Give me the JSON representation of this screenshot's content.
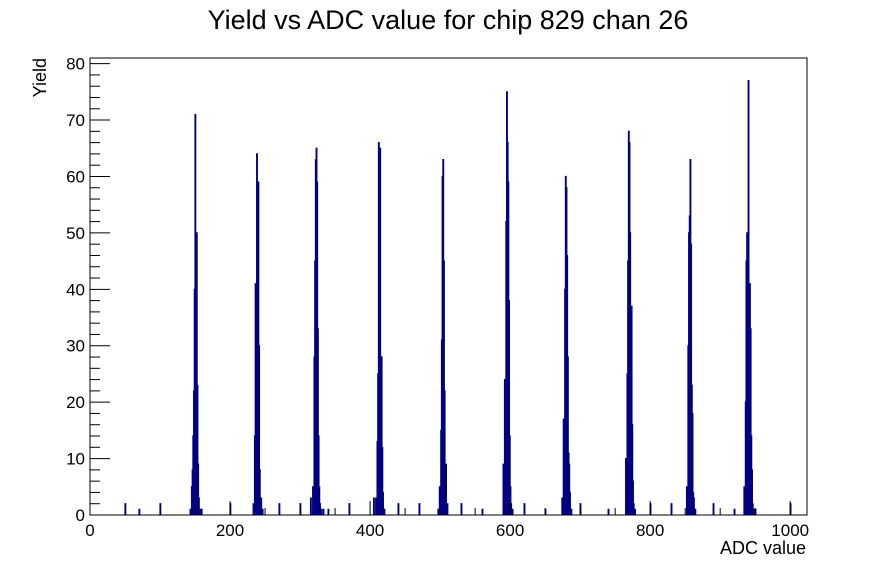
{
  "chart_data": {
    "type": "bar",
    "title": "Yield vs ADC value for chip 829 chan 26",
    "xlabel": "ADC value",
    "ylabel": "Yield",
    "xlim": [
      0,
      1024
    ],
    "ylim": [
      0,
      81
    ],
    "bin_width": 1,
    "grid": false,
    "legend": "none",
    "colors": {
      "series": "#000080",
      "frame": "#000000",
      "background": "#ffffff"
    },
    "x_ticks": [
      0,
      200,
      400,
      600,
      800,
      1000
    ],
    "x_tick_labels": [
      "0",
      "200",
      "400",
      "600",
      "800",
      "1000"
    ],
    "y_ticks": [
      0,
      10,
      20,
      30,
      40,
      50,
      60,
      70,
      80
    ],
    "y_tick_labels": [
      "0",
      "10",
      "20",
      "30",
      "40",
      "50",
      "60",
      "70",
      "80"
    ],
    "series": [
      {
        "x": [
          50,
          70,
          100,
          143,
          145,
          146,
          147,
          148,
          149,
          150,
          151,
          152,
          153,
          154,
          155,
          157,
          159,
          200,
          233,
          235,
          236,
          237,
          238,
          239,
          240,
          241,
          242,
          244,
          246,
          270,
          300,
          315,
          318,
          320,
          321,
          322,
          323,
          324,
          325,
          326,
          327,
          328,
          330,
          333,
          340,
          370,
          405,
          408,
          410,
          411,
          412,
          413,
          414,
          415,
          416,
          417,
          418,
          420,
          440,
          470,
          497,
          499,
          501,
          502,
          503,
          504,
          505,
          506,
          508,
          510,
          530,
          560,
          590,
          592,
          594,
          595,
          596,
          597,
          598,
          599,
          600,
          601,
          603,
          620,
          650,
          674,
          676,
          678,
          679,
          680,
          681,
          682,
          683,
          684,
          685,
          687,
          700,
          740,
          765,
          767,
          768,
          769,
          770,
          771,
          772,
          773,
          774,
          775,
          776,
          778,
          800,
          830,
          852,
          854,
          855,
          856,
          857,
          858,
          859,
          860,
          861,
          862,
          864,
          890,
          920,
          934,
          936,
          937,
          938,
          939,
          940,
          941,
          942,
          943,
          944,
          945,
          946,
          948,
          950,
          1000
        ],
        "values": [
          2,
          1,
          2,
          1,
          5,
          8,
          14,
          22,
          40,
          71,
          48,
          50,
          23,
          9,
          3,
          1,
          1,
          2,
          2,
          14,
          41,
          35,
          64,
          29,
          59,
          30,
          8,
          3,
          1,
          2,
          2,
          3,
          5,
          28,
          45,
          63,
          65,
          59,
          33,
          14,
          5,
          2,
          1,
          1,
          1,
          2,
          3,
          3,
          13,
          25,
          66,
          55,
          65,
          28,
          28,
          12,
          4,
          1,
          2,
          2,
          1,
          5,
          15,
          31,
          60,
          63,
          45,
          22,
          9,
          2,
          2,
          1,
          9,
          24,
          52,
          75,
          66,
          59,
          38,
          14,
          5,
          2,
          1,
          2,
          1,
          3,
          17,
          40,
          60,
          58,
          46,
          28,
          11,
          9,
          4,
          1,
          2,
          1,
          10,
          25,
          45,
          68,
          66,
          50,
          30,
          37,
          16,
          6,
          2,
          1,
          2,
          2,
          5,
          30,
          50,
          53,
          63,
          48,
          23,
          18,
          4,
          3,
          1,
          2,
          1,
          5,
          20,
          45,
          50,
          35,
          77,
          27,
          41,
          33,
          14,
          8,
          2,
          1,
          1,
          2
        ]
      }
    ]
  }
}
